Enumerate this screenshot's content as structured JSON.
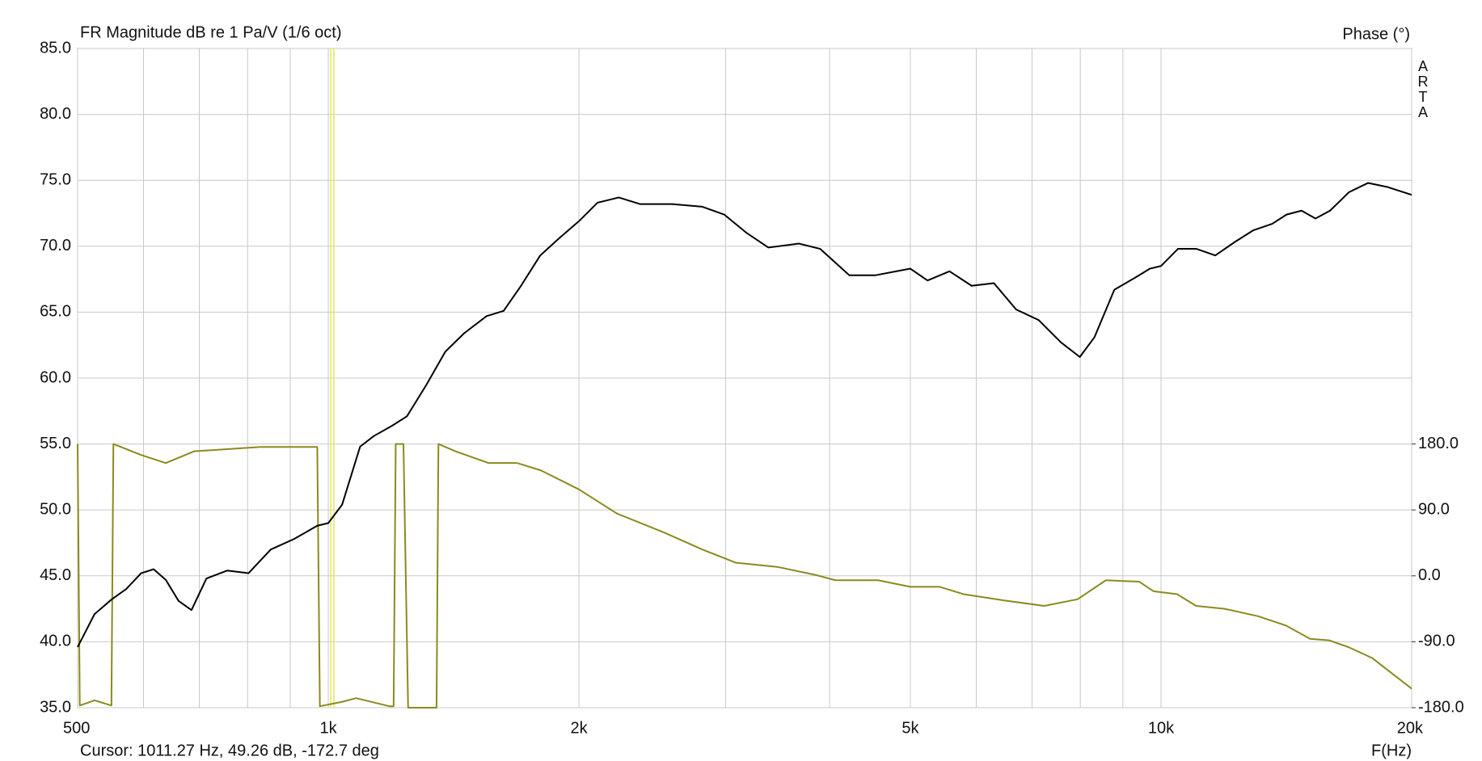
{
  "chart_data": {
    "type": "line",
    "title": "FR Magnitude dB re 1 Pa/V (1/6 oct)",
    "y2_label": "Phase (°)",
    "watermark": "ARTA",
    "x_label": "F(Hz)",
    "cursor": {
      "label": "Cursor: 1011.27 Hz, 49.26 dB, -172.7 deg",
      "x": 1011.27,
      "color": "#e6e65c"
    },
    "x_log": true,
    "grid": true,
    "xlim": [
      500,
      20000
    ],
    "xticks": [
      500,
      {
        "value": 1000,
        "label": "1k"
      },
      {
        "value": 2000,
        "label": "2k"
      },
      {
        "value": 5000,
        "label": "5k"
      },
      {
        "value": 10000,
        "label": "10k"
      },
      {
        "value": 20000,
        "label": "20k"
      }
    ],
    "x_minor_grid": [
      600,
      700,
      800,
      900,
      3000,
      4000,
      6000,
      7000,
      8000,
      9000
    ],
    "ylim": [
      35,
      85
    ],
    "yticks": [
      {
        "value": 35,
        "label": "35.0"
      },
      {
        "value": 40,
        "label": "40.0"
      },
      {
        "value": 45,
        "label": "45.0"
      },
      {
        "value": 50,
        "label": "50.0"
      },
      {
        "value": 55,
        "label": "55.0"
      },
      {
        "value": 60,
        "label": "60.0"
      },
      {
        "value": 65,
        "label": "65.0"
      },
      {
        "value": 70,
        "label": "70.0"
      },
      {
        "value": 75,
        "label": "75.0"
      },
      {
        "value": 80,
        "label": "80.0"
      },
      {
        "value": 85,
        "label": "85.0"
      }
    ],
    "y2lim": [
      -180,
      720
    ],
    "y2ticks": [
      {
        "value": -180,
        "label": "-180.0"
      },
      {
        "value": -90,
        "label": "-90.0"
      },
      {
        "value": 0,
        "label": "0.0"
      },
      {
        "value": 90,
        "label": "90.0"
      },
      {
        "value": 180,
        "label": "180.0"
      }
    ],
    "series": [
      {
        "color": "#000000",
        "axis": "y",
        "x": [
          500,
          524,
          549,
          572,
          596,
          617,
          638,
          661,
          685,
          714,
          756,
          802,
          853,
          910,
          970,
          1000,
          1039,
          1092,
          1134,
          1194,
          1243,
          1312,
          1382,
          1456,
          1549,
          1624,
          1704,
          1797,
          1893,
          2000,
          2105,
          2233,
          2367,
          2586,
          2811,
          2989,
          3181,
          3377,
          3676,
          3897,
          4224,
          4542,
          5000,
          5244,
          5572,
          5924,
          6300,
          6700,
          7130,
          7586,
          7990,
          8320,
          8790,
          9300,
          9700,
          10000,
          10480,
          11030,
          11620,
          12250,
          12900,
          13600,
          14150,
          14750,
          15330,
          15960,
          16820,
          17730,
          18680,
          20000
        ],
        "values": [
          39.6,
          42.1,
          43.2,
          44.0,
          45.2,
          45.5,
          44.7,
          43.1,
          42.4,
          44.8,
          45.4,
          45.2,
          47.0,
          47.8,
          48.8,
          49.0,
          50.4,
          54.8,
          55.6,
          56.4,
          57.1,
          59.5,
          62.0,
          63.4,
          64.7,
          65.1,
          67.0,
          69.3,
          70.6,
          71.9,
          73.3,
          73.7,
          73.2,
          73.2,
          73.0,
          72.4,
          71.0,
          69.9,
          70.2,
          69.8,
          67.8,
          67.8,
          68.3,
          67.4,
          68.1,
          67.0,
          67.2,
          65.2,
          64.4,
          62.7,
          61.6,
          63.1,
          66.7,
          67.6,
          68.3,
          68.5,
          69.8,
          69.8,
          69.3,
          70.3,
          71.2,
          71.7,
          72.4,
          72.7,
          72.1,
          72.7,
          74.1,
          74.8,
          74.5,
          73.9
        ]
      },
      {
        "color": "#8a8a1e",
        "axis": "y2",
        "x": [
          500,
          503,
          524,
          549,
          552,
          596,
          638,
          690,
          756,
          829,
          970,
          977,
          1039,
          1080,
          1184,
          1198,
          1205,
          1231,
          1247,
          1349,
          1356,
          1422,
          1558,
          1686,
          1800,
          2000,
          2222,
          2533,
          2813,
          3084,
          3470,
          3855,
          4064,
          4573,
          5000,
          5423,
          5792,
          6520,
          7240,
          7940,
          8587,
          9415,
          9795,
          10455,
          11020,
          11925,
          13070,
          14140,
          15100,
          15910,
          16770,
          17920,
          20000
        ],
        "values": [
          180,
          -177,
          -170,
          -177,
          180,
          165,
          154,
          170,
          173,
          176,
          176,
          -178,
          -172,
          -167,
          -178,
          -178,
          180,
          180,
          -180,
          -180,
          180,
          170,
          154,
          154,
          144,
          118,
          85,
          59,
          36,
          18,
          12,
          1,
          -6,
          -6,
          -15,
          -15,
          -25,
          -34,
          -41,
          -32,
          -6,
          -8,
          -21,
          -25,
          -41,
          -45,
          -55,
          -68,
          -86,
          -88,
          -97,
          -112,
          -154
        ]
      }
    ]
  }
}
